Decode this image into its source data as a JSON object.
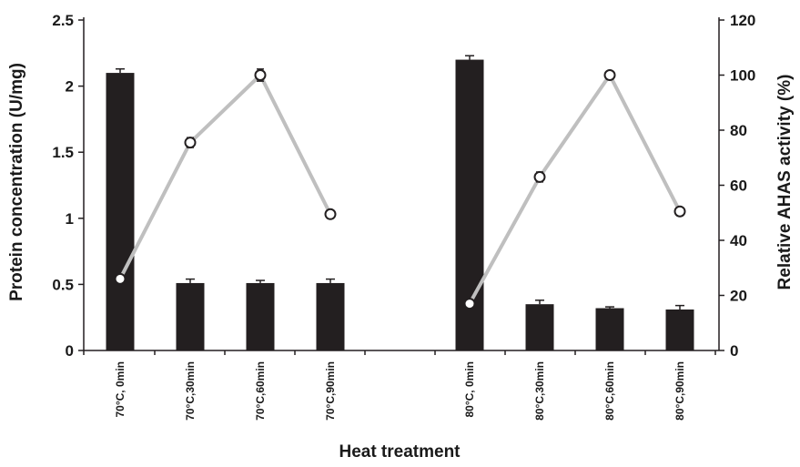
{
  "chart_data": {
    "type": "bar",
    "title": "",
    "xlabel": "Heat treatment",
    "ylabel": "Protein concentration (U/mg)",
    "y2label": "Relative AHAS activity (%)",
    "ylim": [
      0,
      2.5
    ],
    "y2lim": [
      0,
      120
    ],
    "yticks": [
      "0",
      "0.5",
      "1",
      "1.5",
      "2",
      "2.5"
    ],
    "y2ticks": [
      "0",
      "20",
      "40",
      "60",
      "80",
      "100",
      "120"
    ],
    "grid": false,
    "colors": {
      "bar": "#231f20",
      "line": "#bfbfbf",
      "marker_fill": "#ffffff",
      "axis": "#231f20"
    },
    "categories": [
      "70°C, 0min",
      "70°C,30min",
      "70°C,60min",
      "70°C,90min",
      "80°C, 0min",
      "80°C,30min",
      "80°C,60min",
      "80°C,90min"
    ],
    "series": [
      {
        "kind": "bar",
        "axis": "left",
        "values": [
          2.1,
          0.51,
          0.51,
          0.51,
          2.2,
          0.35,
          0.32,
          0.31
        ],
        "errors": [
          0.03,
          0.03,
          0.02,
          0.03,
          0.03,
          0.03,
          0.01,
          0.03
        ]
      },
      {
        "kind": "line",
        "axis": "right",
        "groups": [
          [
            0,
            1,
            2,
            3
          ],
          [
            4,
            5,
            6,
            7
          ]
        ],
        "values": [
          26,
          75.5,
          100,
          49.5,
          17,
          63,
          100,
          50.5
        ],
        "errors": [
          0,
          1.8,
          2.2,
          1.4,
          0,
          1.8,
          0,
          0
        ]
      }
    ]
  }
}
